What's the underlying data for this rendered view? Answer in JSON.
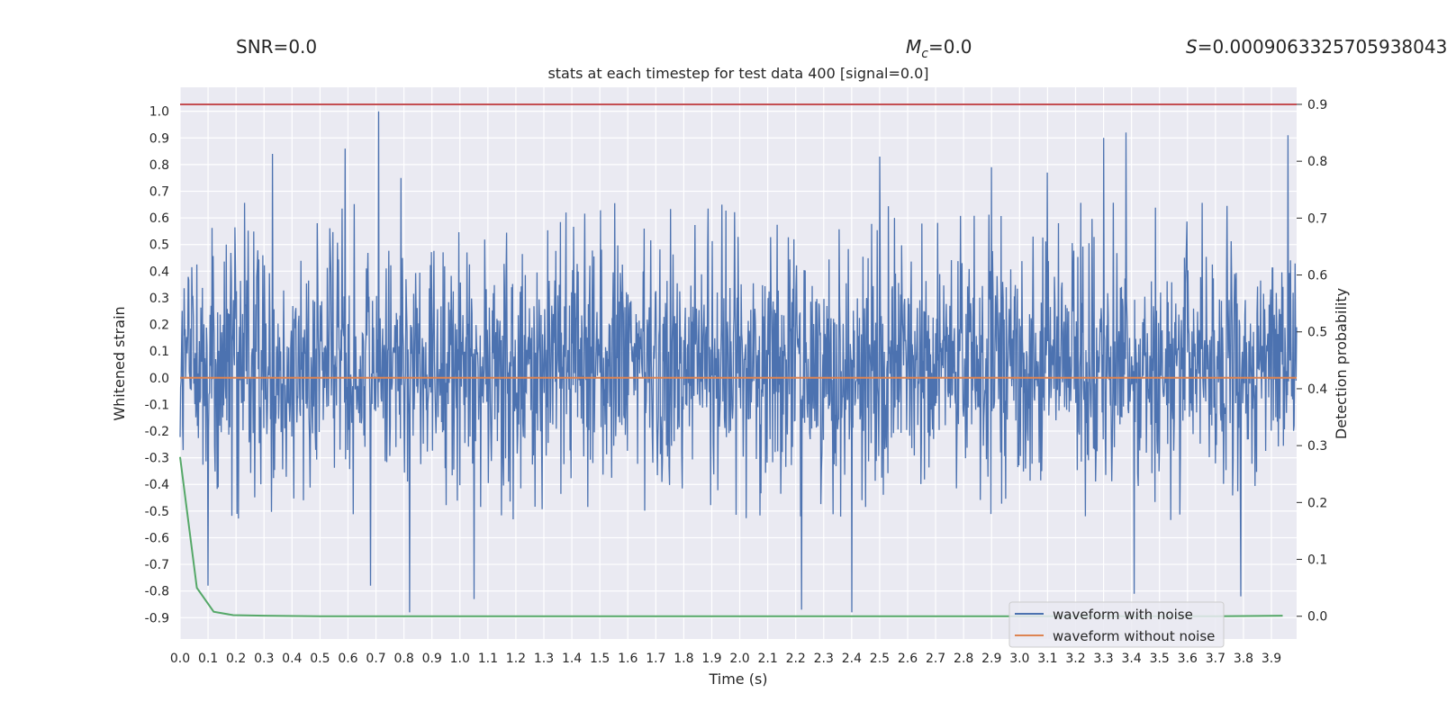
{
  "header": {
    "snr_prefix": "SNR=",
    "snr_value": "0.0",
    "mc_symbol": "M",
    "mc_subscript": "c",
    "mc_value": "=0.0",
    "s_symbol": "S",
    "s_value": "=0.0009063325705938043"
  },
  "chart_data": {
    "type": "line",
    "title": "stats at each timestep for test data 400 [signal=0.0]",
    "xlabel": "Time (s)",
    "ylabel_left": "Whitened strain",
    "ylabel_right": "Detection probability",
    "xlim": [
      0.0,
      3.99
    ],
    "ylim_left": [
      -0.98,
      1.09
    ],
    "ylim_right": [
      -0.04,
      0.93
    ],
    "x_ticks": [
      "0.0",
      "0.1",
      "0.2",
      "0.3",
      "0.4",
      "0.5",
      "0.6",
      "0.7",
      "0.8",
      "0.9",
      "1.0",
      "1.1",
      "1.2",
      "1.3",
      "1.4",
      "1.5",
      "1.6",
      "1.7",
      "1.8",
      "1.9",
      "2.0",
      "2.1",
      "2.2",
      "2.3",
      "2.4",
      "2.5",
      "2.6",
      "2.7",
      "2.8",
      "2.9",
      "3.0",
      "3.1",
      "3.2",
      "3.3",
      "3.4",
      "3.5",
      "3.6",
      "3.7",
      "3.8",
      "3.9"
    ],
    "y_ticks_left": [
      "1.0",
      "0.9",
      "0.8",
      "0.7",
      "0.6",
      "0.5",
      "0.4",
      "0.3",
      "0.2",
      "0.1",
      "0.0",
      "-0.1",
      "-0.2",
      "-0.3",
      "-0.4",
      "-0.5",
      "-0.6",
      "-0.7",
      "-0.8",
      "-0.9"
    ],
    "y_ticks_right": [
      "0.9",
      "0.8",
      "0.7",
      "0.6",
      "0.5",
      "0.4",
      "0.3",
      "0.2",
      "0.1",
      "0.0"
    ],
    "series": [
      {
        "name": "waveform with noise",
        "axis": "left",
        "color": "#4c72b0",
        "noise_envelope": {
          "typical_range": [
            -0.45,
            0.55
          ],
          "max": 1.0,
          "min": -0.88
        },
        "peaks": [
          {
            "x": 0.71,
            "y": 1.0
          },
          {
            "x": 0.33,
            "y": 0.84
          },
          {
            "x": 0.59,
            "y": 0.86
          },
          {
            "x": 0.79,
            "y": 0.75
          },
          {
            "x": 3.3,
            "y": 0.9
          },
          {
            "x": 3.38,
            "y": 0.92
          },
          {
            "x": 3.96,
            "y": 0.91
          },
          {
            "x": 2.5,
            "y": 0.83
          },
          {
            "x": 2.9,
            "y": 0.79
          },
          {
            "x": 3.1,
            "y": 0.77
          }
        ],
        "troughs": [
          {
            "x": 0.82,
            "y": -0.88
          },
          {
            "x": 2.22,
            "y": -0.87
          },
          {
            "x": 2.4,
            "y": -0.88
          },
          {
            "x": 3.41,
            "y": -0.81
          },
          {
            "x": 3.79,
            "y": -0.82
          },
          {
            "x": 0.1,
            "y": -0.78
          },
          {
            "x": 1.05,
            "y": -0.83
          },
          {
            "x": 0.68,
            "y": -0.78
          }
        ]
      },
      {
        "name": "waveform without noise",
        "axis": "left",
        "color": "#dd8452",
        "x": [
          0.0,
          3.99
        ],
        "y": [
          0.0,
          0.0
        ]
      },
      {
        "name": "detection probability",
        "axis": "right",
        "color": "#55a868",
        "x": [
          0.0,
          0.06,
          0.12,
          0.19,
          0.3,
          0.5,
          1.0,
          2.0,
          3.0,
          3.7,
          3.94
        ],
        "y": [
          0.28,
          0.05,
          0.008,
          0.002,
          0.001,
          0.0,
          0.0,
          0.0,
          0.0,
          0.0,
          0.001
        ]
      },
      {
        "name": "threshold",
        "axis": "right",
        "color": "#c44e52",
        "x": [
          0.0,
          3.99
        ],
        "y": [
          0.9,
          0.9
        ]
      }
    ],
    "legend": [
      "waveform with noise",
      "waveform without noise"
    ],
    "legend_position": "lower right",
    "grid": true
  }
}
